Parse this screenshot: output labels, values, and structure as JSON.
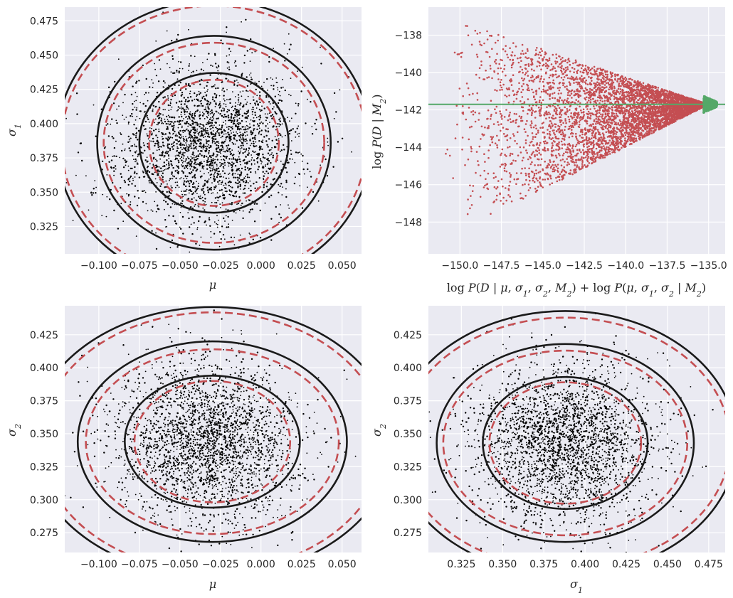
{
  "chart_data": [
    {
      "type": "scatter",
      "panel": "mu-sigma1",
      "xlabel": "μ",
      "ylabel": "σ1",
      "xlim": [
        -0.121,
        0.062
      ],
      "ylim": [
        0.305,
        0.485
      ],
      "xticks": [
        -0.1,
        -0.075,
        -0.05,
        -0.025,
        0.0,
        0.025,
        0.05
      ],
      "xtick_labels": [
        "−0.100",
        "−0.075",
        "−0.050",
        "−0.025",
        "0.000",
        "0.025",
        "0.050"
      ],
      "yticks": [
        0.325,
        0.35,
        0.375,
        0.4,
        0.425,
        0.45,
        0.475
      ],
      "ytick_labels": [
        "0.325",
        "0.350",
        "0.375",
        "0.400",
        "0.425",
        "0.450",
        "0.475"
      ],
      "grid": true,
      "scatter": {
        "n_points": 2600,
        "center": [
          -0.033,
          0.385
        ],
        "sd": [
          0.028,
          0.028
        ],
        "corr": 0.05,
        "color": "#000000"
      },
      "contours": {
        "center": [
          -0.029,
          0.386
        ],
        "solid": {
          "color": "#1a1a1a",
          "rx": [
            0.046,
            0.072,
            0.097
          ],
          "ry": [
            0.051,
            0.078,
            0.104
          ]
        },
        "dashed": {
          "color": "#c44e52",
          "rx": [
            0.04,
            0.068,
            0.094
          ],
          "ry": [
            0.046,
            0.073,
            0.1
          ]
        }
      }
    },
    {
      "type": "scatter",
      "panel": "logpost-logevidence",
      "xlabel": "log P(D | μ, σ1, σ2, M2) + log P(μ, σ1, σ2 | M2)",
      "ylabel": "log P(D | M2)",
      "xlim": [
        -151.9,
        -134.0
      ],
      "ylim": [
        -149.7,
        -136.5
      ],
      "xticks": [
        -150.0,
        -147.5,
        -145.0,
        -142.5,
        -140.0,
        -137.5,
        -135.0
      ],
      "xtick_labels": [
        "−150.0",
        "−147.5",
        "−145.0",
        "−142.5",
        "−140.0",
        "−137.5",
        "−135.0"
      ],
      "yticks": [
        -148,
        -146,
        -144,
        -142,
        -140,
        -138
      ],
      "ytick_labels": [
        "−148",
        "−146",
        "−144",
        "−142",
        "−140",
        "−138"
      ],
      "grid": true,
      "series": [
        {
          "color": "#c44e52",
          "x_range": [
            -151.0,
            -135.0
          ],
          "y_converge": -141.7,
          "upper_at_left": -137.0,
          "lower_at_left": -149.0
        },
        {
          "color": "#55a868",
          "x_range": [
            -135.3,
            -134.5
          ],
          "y": -141.7
        }
      ],
      "hline": {
        "y": -141.7,
        "color": "#55a868"
      }
    },
    {
      "type": "scatter",
      "panel": "mu-sigma2",
      "xlabel": "μ",
      "ylabel": "σ2",
      "xlim": [
        -0.121,
        0.062
      ],
      "ylim": [
        0.26,
        0.447
      ],
      "xticks": [
        -0.1,
        -0.075,
        -0.05,
        -0.025,
        0.0,
        0.025,
        0.05
      ],
      "xtick_labels": [
        "−0.100",
        "−0.075",
        "−0.050",
        "−0.025",
        "0.000",
        "0.025",
        "0.050"
      ],
      "yticks": [
        0.275,
        0.3,
        0.325,
        0.35,
        0.375,
        0.4,
        0.425
      ],
      "ytick_labels": [
        "0.275",
        "0.300",
        "0.325",
        "0.350",
        "0.375",
        "0.400",
        "0.425"
      ],
      "grid": true,
      "scatter": {
        "n_points": 2600,
        "center": [
          -0.034,
          0.345
        ],
        "sd": [
          0.027,
          0.03
        ],
        "corr": -0.05,
        "color": "#000000"
      },
      "contours": {
        "center": [
          -0.03,
          0.344
        ],
        "solid": {
          "color": "#1a1a1a",
          "rx": [
            0.054,
            0.083,
            0.112
          ],
          "ry": [
            0.05,
            0.076,
            0.102
          ]
        },
        "dashed": {
          "color": "#c44e52",
          "rx": [
            0.048,
            0.078,
            0.106
          ],
          "ry": [
            0.046,
            0.07,
            0.098
          ]
        }
      }
    },
    {
      "type": "scatter",
      "panel": "sigma1-sigma2",
      "xlabel": "σ1",
      "ylabel": "σ2",
      "xlim": [
        0.305,
        0.485
      ],
      "ylim": [
        0.26,
        0.447
      ],
      "xticks": [
        0.325,
        0.35,
        0.375,
        0.4,
        0.425,
        0.45,
        0.475
      ],
      "xtick_labels": [
        "0.325",
        "0.350",
        "0.375",
        "0.400",
        "0.425",
        "0.450",
        "0.475"
      ],
      "yticks": [
        0.275,
        0.3,
        0.325,
        0.35,
        0.375,
        0.4,
        0.425
      ],
      "ytick_labels": [
        "0.275",
        "0.300",
        "0.325",
        "0.350",
        "0.375",
        "0.400",
        "0.425"
      ],
      "grid": true,
      "scatter": {
        "n_points": 2600,
        "center": [
          0.387,
          0.343
        ],
        "sd": [
          0.028,
          0.03
        ],
        "corr": 0.02,
        "color": "#000000"
      },
      "contours": {
        "center": [
          0.388,
          0.343
        ],
        "solid": {
          "color": "#1a1a1a",
          "rx": [
            0.05,
            0.078,
            0.104
          ],
          "ry": [
            0.05,
            0.075,
            0.1
          ]
        },
        "dashed": {
          "color": "#c44e52",
          "rx": [
            0.046,
            0.074,
            0.1
          ],
          "ry": [
            0.046,
            0.07,
            0.095
          ]
        }
      }
    }
  ]
}
